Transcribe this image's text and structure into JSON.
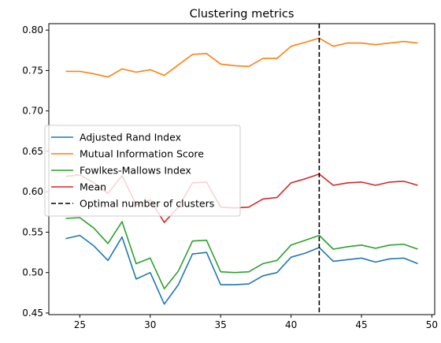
{
  "chart_data": {
    "type": "line",
    "title": "Clustering metrics",
    "xlabel": "",
    "ylabel": "",
    "xlim": [
      22.8,
      50.2
    ],
    "ylim": [
      0.448,
      0.808
    ],
    "xticks": [
      25,
      30,
      35,
      40,
      45,
      50
    ],
    "yticks": [
      0.45,
      0.5,
      0.55,
      0.6,
      0.65,
      0.7,
      0.75,
      0.8
    ],
    "ytick_labels": [
      "0.45",
      "0.50",
      "0.55",
      "0.60",
      "0.65",
      "0.70",
      "0.75",
      "0.80"
    ],
    "grid": false,
    "legend_placement": "center-left",
    "x": [
      24,
      25,
      26,
      27,
      28,
      29,
      30,
      31,
      32,
      33,
      34,
      35,
      36,
      37,
      38,
      39,
      40,
      41,
      42,
      43,
      44,
      45,
      46,
      47,
      48,
      49
    ],
    "series": [
      {
        "name": "Adjusted Rand Index",
        "color": "#1f77b4",
        "values": [
          0.542,
          0.546,
          0.533,
          0.515,
          0.544,
          0.492,
          0.5,
          0.461,
          0.485,
          0.523,
          0.525,
          0.485,
          0.485,
          0.486,
          0.496,
          0.5,
          0.519,
          0.524,
          0.531,
          0.514,
          0.516,
          0.518,
          0.513,
          0.517,
          0.518,
          0.511
        ]
      },
      {
        "name": "Mutual Information Score",
        "color": "#ff7f0e",
        "values": [
          0.749,
          0.749,
          0.746,
          0.742,
          0.752,
          0.748,
          0.751,
          0.744,
          0.757,
          0.77,
          0.771,
          0.758,
          0.756,
          0.755,
          0.765,
          0.765,
          0.78,
          0.785,
          0.79,
          0.78,
          0.784,
          0.784,
          0.782,
          0.784,
          0.786,
          0.784
        ]
      },
      {
        "name": "Fowlkes-Mallows Index",
        "color": "#2ca02c",
        "values": [
          0.567,
          0.568,
          0.555,
          0.536,
          0.563,
          0.511,
          0.518,
          0.48,
          0.502,
          0.539,
          0.54,
          0.501,
          0.5,
          0.501,
          0.511,
          0.515,
          0.534,
          0.54,
          0.546,
          0.529,
          0.532,
          0.534,
          0.53,
          0.534,
          0.535,
          0.529
        ]
      },
      {
        "name": "Mean",
        "color": "#d62728",
        "values": [
          0.619,
          0.621,
          0.611,
          0.598,
          0.62,
          0.584,
          0.59,
          0.562,
          0.581,
          0.611,
          0.612,
          0.581,
          0.58,
          0.581,
          0.591,
          0.593,
          0.611,
          0.616,
          0.622,
          0.608,
          0.611,
          0.612,
          0.608,
          0.612,
          0.613,
          0.608
        ]
      }
    ],
    "vline": {
      "name": "Optimal number of clusters",
      "x": 42,
      "color": "#000000",
      "style": "dashed"
    }
  }
}
